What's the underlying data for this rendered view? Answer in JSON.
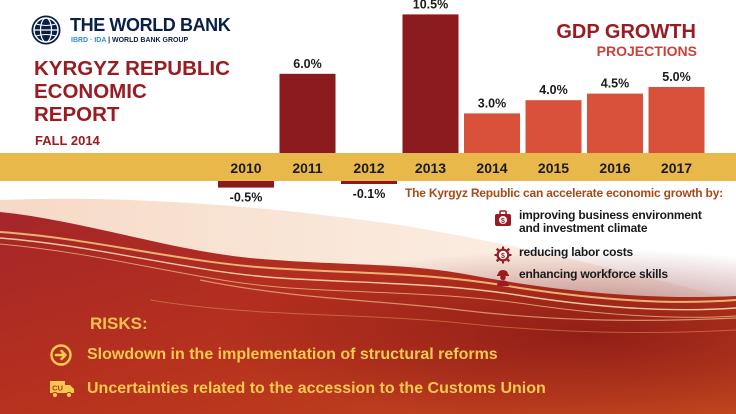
{
  "logo": {
    "name": "THE WORLD BANK",
    "sub_ibrd": "IBRD · IDA",
    "sub_group": "WORLD BANK GROUP"
  },
  "report": {
    "title_lines": [
      "KYRGYZ REPUBLIC",
      "ECONOMIC",
      "REPORT"
    ],
    "subtitle": "FALL 2014"
  },
  "gdp": {
    "title": "GDP GROWTH",
    "subtitle": "PROJECTIONS"
  },
  "chart_data": {
    "type": "bar",
    "title": "GDP GROWTH",
    "subtitle": "PROJECTIONS",
    "categories": [
      "2010",
      "2011",
      "2012",
      "2013",
      "2014",
      "2015",
      "2016",
      "2017"
    ],
    "values": [
      -0.5,
      6.0,
      -0.1,
      10.5,
      3.0,
      4.0,
      4.5,
      5.0
    ],
    "value_labels": [
      "-0.5%",
      "6.0%",
      "-0.1%",
      "10.5%",
      "3.0%",
      "4.0%",
      "4.5%",
      "5.0%"
    ],
    "projection_from": "2014",
    "colors": {
      "actual": "#8b1a1e",
      "projection": "#d9513a",
      "axis_band": "#e9b84a"
    },
    "xlabel": "",
    "ylabel": "",
    "ylim": [
      -0.5,
      10.5
    ],
    "grid": false,
    "legend": "none"
  },
  "growth_paths": {
    "title": "The Kyrgyz Republic can accelerate economic growth by:",
    "items": [
      {
        "icon": "briefcase-dollar-icon",
        "text_lines": [
          "improving business environment",
          "and investment climate"
        ]
      },
      {
        "icon": "dollar-gear-icon",
        "text_lines": [
          "reducing labor costs"
        ]
      },
      {
        "icon": "worker-icon",
        "text_lines": [
          "enhancing workforce skills"
        ]
      }
    ]
  },
  "risks": {
    "title": "RISKS:",
    "items": [
      {
        "icon": "arrow-circle-icon",
        "text": "Slowdown in the implementation of structural reforms"
      },
      {
        "icon": "customs-truck-icon",
        "icon_label": "CU",
        "text": "Uncertainties related to the accession to the Customs Union"
      }
    ]
  },
  "colors": {
    "brand_red": "#9a1c22",
    "projection_red": "#d9513a",
    "gold": "#e9b84a",
    "risk_text": "#f6c94f"
  }
}
